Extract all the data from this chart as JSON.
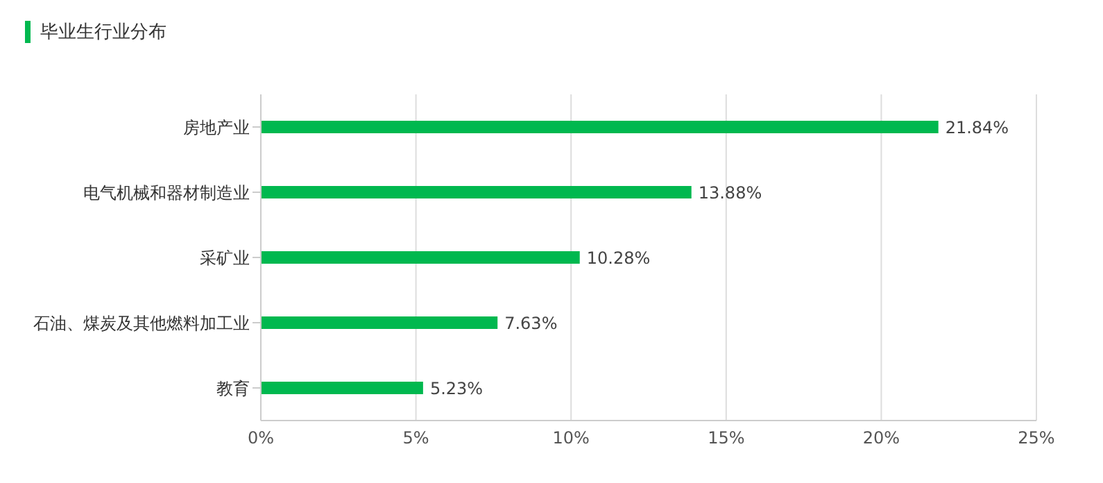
{
  "chart_data": {
    "type": "bar",
    "orientation": "horizontal",
    "title": "毕业生行业分布",
    "categories": [
      "房地产业",
      "电气机械和器材制造业",
      "采矿业",
      "石油、煤炭及其他燃料加工业",
      "教育"
    ],
    "series": [
      {
        "color": "#00b84f",
        "values": [
          21.84,
          13.88,
          10.28,
          7.63,
          5.23
        ],
        "value_labels": [
          "21.84%",
          "13.88%",
          "10.28%",
          "7.63%",
          "5.23%"
        ]
      }
    ],
    "xlim": [
      0,
      25
    ],
    "xticks": [
      {
        "value": 0,
        "label": "0%"
      },
      {
        "value": 5,
        "label": "5%"
      },
      {
        "value": 10,
        "label": "10%"
      },
      {
        "value": 15,
        "label": "15%"
      },
      {
        "value": 20,
        "label": "20%"
      },
      {
        "value": 25,
        "label": "25%"
      }
    ],
    "grid": "x",
    "legend": false
  }
}
